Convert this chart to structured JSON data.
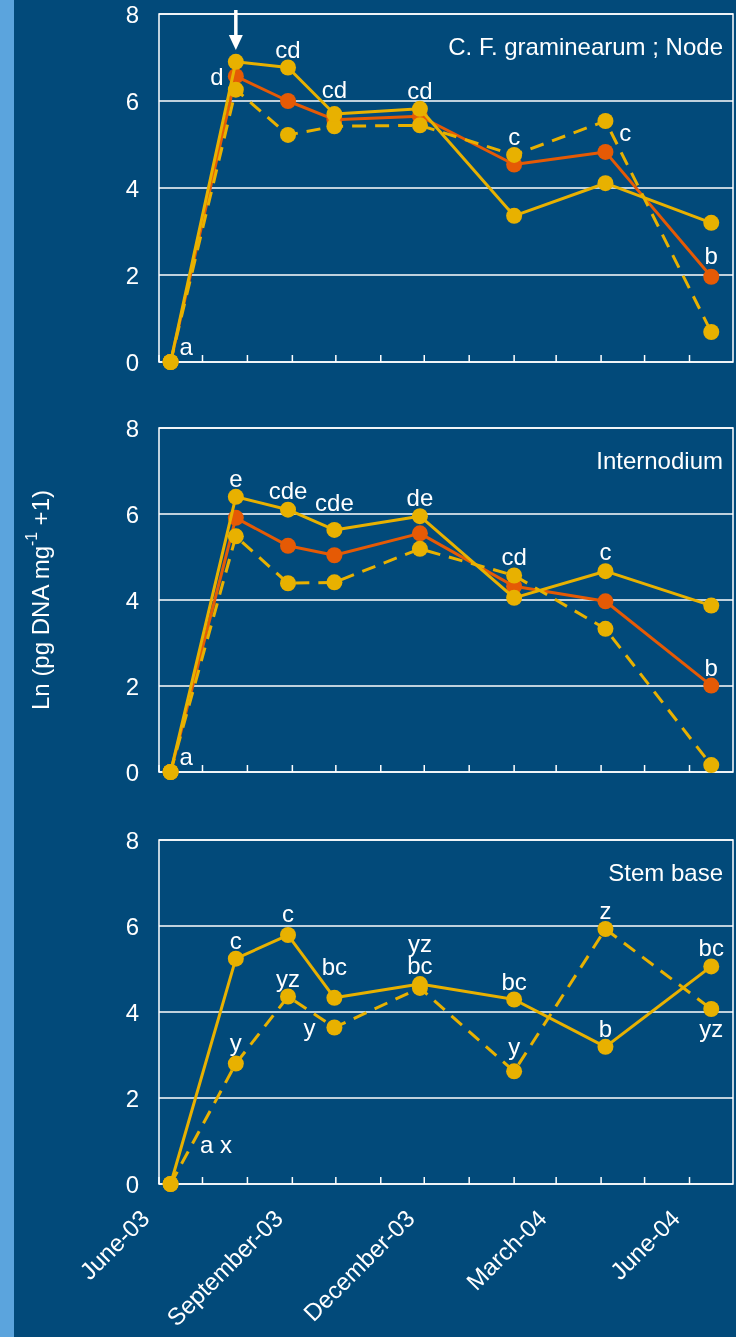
{
  "chart_data": [
    {
      "type": "line",
      "title": "C. F. graminearum ; Node",
      "x": [
        "2003-06-09",
        "2003-07-24",
        "2003-08-29",
        "2003-09-30",
        "2003-11-28",
        "2004-02-01",
        "2004-04-04",
        "2004-06-16"
      ],
      "series": [
        {
          "color": "#e55a05",
          "line_style": "solid",
          "values": [
            0,
            6.57,
            6.0,
            5.57,
            5.65,
            4.54,
            4.83,
            1.96
          ]
        },
        {
          "color": "#e8b100",
          "line_style": "dashed",
          "values": [
            0,
            6.26,
            5.22,
            5.42,
            5.44,
            4.76,
            5.54,
            0.69
          ]
        },
        {
          "color": "#e8b100",
          "line_style": "solid",
          "values": [
            0,
            6.9,
            6.77,
            5.7,
            5.82,
            3.36,
            4.11,
            3.2
          ]
        }
      ],
      "xlim": [
        "2003-06-01",
        "2004-07-01"
      ],
      "xticks": [
        {
          "value": "2003-06-01",
          "label": null
        },
        {
          "value": "2003-07-01",
          "label": null
        },
        {
          "value": "2003-08-01",
          "label": null
        },
        {
          "value": "2003-09-01",
          "label": null
        },
        {
          "value": "2003-10-01",
          "label": null
        },
        {
          "value": "2003-11-01",
          "label": null
        },
        {
          "value": "2003-12-01",
          "label": null
        },
        {
          "value": "2004-01-01",
          "label": null
        },
        {
          "value": "2004-02-01",
          "label": null
        },
        {
          "value": "2004-03-01",
          "label": null
        },
        {
          "value": "2004-04-01",
          "label": null
        },
        {
          "value": "2004-05-01",
          "label": null
        },
        {
          "value": "2004-06-01",
          "label": null
        }
      ],
      "ylim": [
        0,
        8
      ],
      "yticks": [
        0,
        2,
        4,
        6,
        8
      ],
      "grid": "y",
      "marker": "circle",
      "tick_labels": "y",
      "annotations": [
        {
          "text": "a",
          "x": "2003-06-09",
          "y": 0
        },
        {
          "text": "d",
          "x": "2003-07-24",
          "y": 6.57
        },
        {
          "text": "cd",
          "x": "2003-08-29",
          "y": 6.77
        },
        {
          "text": "cd",
          "x": "2003-09-30",
          "y": 5.7
        },
        {
          "text": "cd",
          "x": "2003-11-28",
          "y": 5.82
        },
        {
          "text": "c",
          "x": "2004-02-01",
          "y": 4.76
        },
        {
          "text": "c",
          "x": "2004-04-04",
          "y": 4.83
        },
        {
          "text": "b",
          "x": "2004-06-16",
          "y": 1.96
        }
      ]
    },
    {
      "type": "line",
      "title": "Internodium",
      "ylabel": "Ln (pg DNA mg$^{-1}$ +1)",
      "x": [
        "2003-06-09",
        "2003-07-24",
        "2003-08-29",
        "2003-09-30",
        "2003-11-28",
        "2004-02-01",
        "2004-04-04",
        "2004-06-16"
      ],
      "series": [
        {
          "color": "#e55a05",
          "line_style": "solid",
          "values": [
            0,
            5.91,
            5.26,
            5.04,
            5.55,
            4.32,
            3.97,
            2.01
          ]
        },
        {
          "color": "#e8b100",
          "line_style": "dashed",
          "values": [
            0,
            5.48,
            4.39,
            4.41,
            5.19,
            4.57,
            3.33,
            0.16
          ]
        },
        {
          "color": "#e8b100",
          "line_style": "solid",
          "values": [
            0,
            6.4,
            6.1,
            5.63,
            5.95,
            4.05,
            4.67,
            3.87
          ]
        }
      ],
      "xlim": [
        "2003-06-01",
        "2004-07-01"
      ],
      "xticks": [
        {
          "value": "2003-06-01",
          "label": null
        },
        {
          "value": "2003-07-01",
          "label": null
        },
        {
          "value": "2003-08-01",
          "label": null
        },
        {
          "value": "2003-09-01",
          "label": null
        },
        {
          "value": "2003-10-01",
          "label": null
        },
        {
          "value": "2003-11-01",
          "label": null
        },
        {
          "value": "2003-12-01",
          "label": null
        },
        {
          "value": "2004-01-01",
          "label": null
        },
        {
          "value": "2004-02-01",
          "label": null
        },
        {
          "value": "2004-03-01",
          "label": null
        },
        {
          "value": "2004-04-01",
          "label": null
        },
        {
          "value": "2004-05-01",
          "label": null
        },
        {
          "value": "2004-06-01",
          "label": null
        }
      ],
      "ylim": [
        0,
        8
      ],
      "yticks": [
        0,
        2,
        4,
        6,
        8
      ],
      "grid": "y",
      "marker": "circle",
      "tick_labels": "y",
      "annotations": [
        {
          "text": "a",
          "x": "2003-06-09",
          "y": 0
        },
        {
          "text": "e",
          "x": "2003-07-24",
          "y": 6.4
        },
        {
          "text": "cde",
          "x": "2003-09-30",
          "y": 5.63
        },
        {
          "text": "cde",
          "x": "2003-08-29",
          "y": 5.26
        },
        {
          "text": "de",
          "x": "2003-11-28",
          "y": 5.95
        },
        {
          "text": "cd",
          "x": "2004-02-01",
          "y": 4.57
        },
        {
          "text": "c",
          "x": "2004-04-04",
          "y": 3.97
        },
        {
          "text": "b",
          "x": "2004-06-16",
          "y": 2.01
        }
      ]
    },
    {
      "type": "line",
      "title": "Stem base",
      "x": [
        "2003-06-09",
        "2003-07-24",
        "2003-08-29",
        "2003-09-30",
        "2003-11-28",
        "2004-02-01",
        "2004-04-04",
        "2004-06-16"
      ],
      "series": [
        {
          "color": "#e8b100",
          "line_style": "dashed",
          "values": [
            0,
            2.8,
            4.36,
            3.64,
            4.56,
            2.62,
            5.93,
            4.07
          ]
        },
        {
          "color": "#e8b100",
          "line_style": "solid",
          "values": [
            0,
            5.24,
            5.79,
            4.33,
            4.65,
            4.29,
            3.19,
            5.06
          ]
        }
      ],
      "xlim": [
        "2003-06-01",
        "2004-07-01"
      ],
      "xticks": [
        {
          "value": "2003-06-01",
          "label": "June-03"
        },
        {
          "value": "2003-07-01",
          "label": null
        },
        {
          "value": "2003-08-01",
          "label": null
        },
        {
          "value": "2003-09-01",
          "label": "September-03"
        },
        {
          "value": "2003-10-01",
          "label": null
        },
        {
          "value": "2003-11-01",
          "label": null
        },
        {
          "value": "2003-12-01",
          "label": "December-03"
        },
        {
          "value": "2004-01-01",
          "label": null
        },
        {
          "value": "2004-02-01",
          "label": null
        },
        {
          "value": "2004-03-01",
          "label": "March-04"
        },
        {
          "value": "2004-04-01",
          "label": null
        },
        {
          "value": "2004-05-01",
          "label": null
        },
        {
          "value": "2004-06-01",
          "label": "June-04"
        }
      ],
      "ylim": [
        0,
        8
      ],
      "yticks": [
        0,
        2,
        4,
        6,
        8
      ],
      "grid": "y",
      "marker": "circle",
      "annotations": [
        {
          "text": "a x",
          "x": "2003-06-09",
          "y": 0
        },
        {
          "text": "c",
          "x": "2003-07-24",
          "y": 5.24
        },
        {
          "text": "y",
          "x": "2003-07-24",
          "y": 2.8
        },
        {
          "text": "c",
          "x": "2003-08-29",
          "y": 5.79
        },
        {
          "text": "yz",
          "x": "2003-08-29",
          "y": 4.36
        },
        {
          "text": "bc",
          "x": "2003-09-30",
          "y": 4.33
        },
        {
          "text": "y",
          "x": "2003-09-30",
          "y": 3.64
        },
        {
          "text": "bc",
          "x": "2003-11-28",
          "y": 4.65
        },
        {
          "text": "yz",
          "x": "2003-11-28",
          "y": 4.56
        },
        {
          "text": "bc",
          "x": "2004-02-01",
          "y": 4.29
        },
        {
          "text": "y",
          "x": "2004-02-01",
          "y": 2.62
        },
        {
          "text": "z",
          "x": "2004-04-04",
          "y": 5.93
        },
        {
          "text": "b",
          "x": "2004-04-04",
          "y": 3.19
        },
        {
          "text": "bc",
          "x": "2004-06-16",
          "y": 5.06
        },
        {
          "text": "yz",
          "x": "2004-06-16",
          "y": 4.07
        }
      ]
    }
  ]
}
